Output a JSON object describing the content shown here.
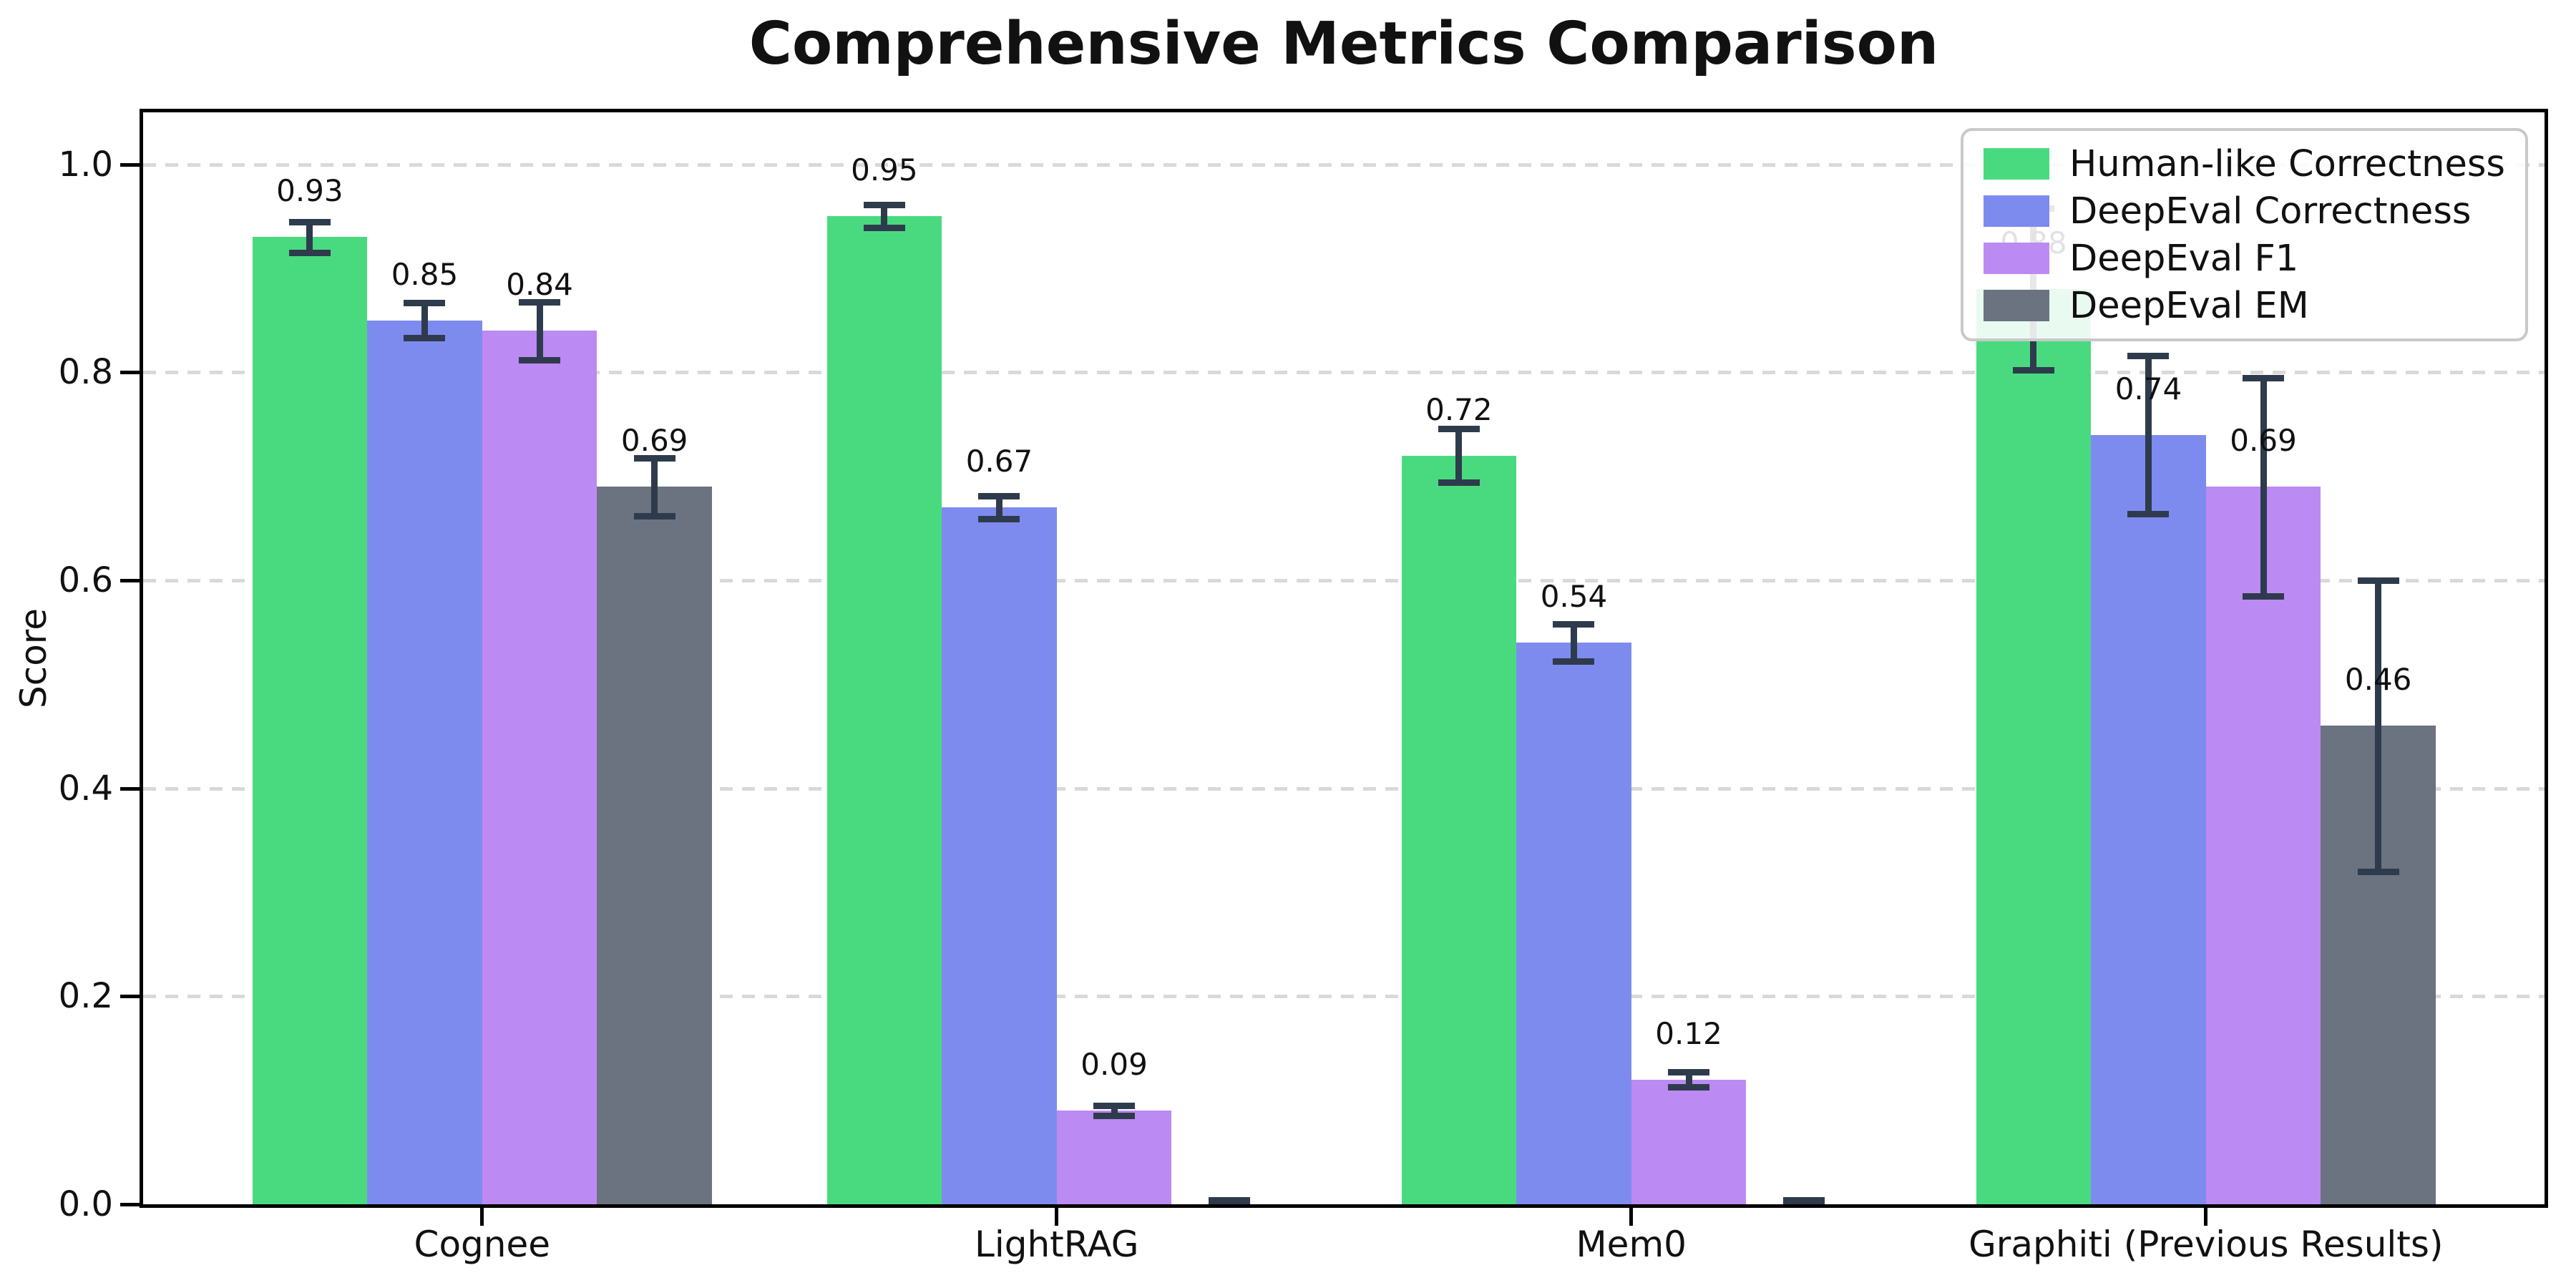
{
  "title": "Comprehensive Metrics Comparison",
  "chart_data": {
    "type": "bar",
    "title": "Comprehensive Metrics Comparison",
    "xlabel": "",
    "ylabel": "Score",
    "categories": [
      "Cognee",
      "LightRAG",
      "Mem0",
      "Graphiti (Previous Results)"
    ],
    "series": [
      {
        "name": "Human-like Correctness",
        "color": "#49da80",
        "values": [
          0.93,
          0.95,
          0.72,
          0.88
        ],
        "errors": [
          0.015,
          0.011,
          0.026,
          0.078
        ],
        "labels": [
          "0.93",
          "0.95",
          "0.72",
          "0.88"
        ]
      },
      {
        "name": "DeepEval Correctness",
        "color": "#7e8bee",
        "values": [
          0.85,
          0.67,
          0.54,
          0.74
        ],
        "errors": [
          0.017,
          0.011,
          0.018,
          0.076
        ],
        "labels": [
          "0.85",
          "0.67",
          "0.54",
          "0.74"
        ]
      },
      {
        "name": "DeepEval F1",
        "color": "#bc8af3",
        "values": [
          0.84,
          0.09,
          0.12,
          0.69
        ],
        "errors": [
          0.028,
          0.005,
          0.007,
          0.105
        ],
        "labels": [
          "0.84",
          "0.09",
          "0.12",
          "0.69"
        ]
      },
      {
        "name": "DeepEval EM",
        "color": "#6b7280",
        "values": [
          0.69,
          0.0,
          0.0,
          0.46
        ],
        "errors": [
          0.028,
          0.004,
          0.004,
          0.14
        ],
        "labels": [
          "0.69",
          "",
          "",
          "0.46"
        ]
      }
    ],
    "yticks": [
      "0.0",
      "0.2",
      "0.4",
      "0.6",
      "0.8",
      "1.0"
    ],
    "ylim": [
      0,
      1.05
    ],
    "grid": "horizontal-dashed",
    "legend_position": "upper-right"
  },
  "legend": {
    "entries": [
      "Human-like Correctness",
      "DeepEval Correctness",
      "DeepEval F1",
      "DeepEval EM"
    ]
  },
  "colors": {
    "error_bar": "#2e3b4c",
    "grid": "#d9d9d9",
    "axis": "#000000",
    "legend_border": "#c9c9c9",
    "background": "#ffffff"
  }
}
